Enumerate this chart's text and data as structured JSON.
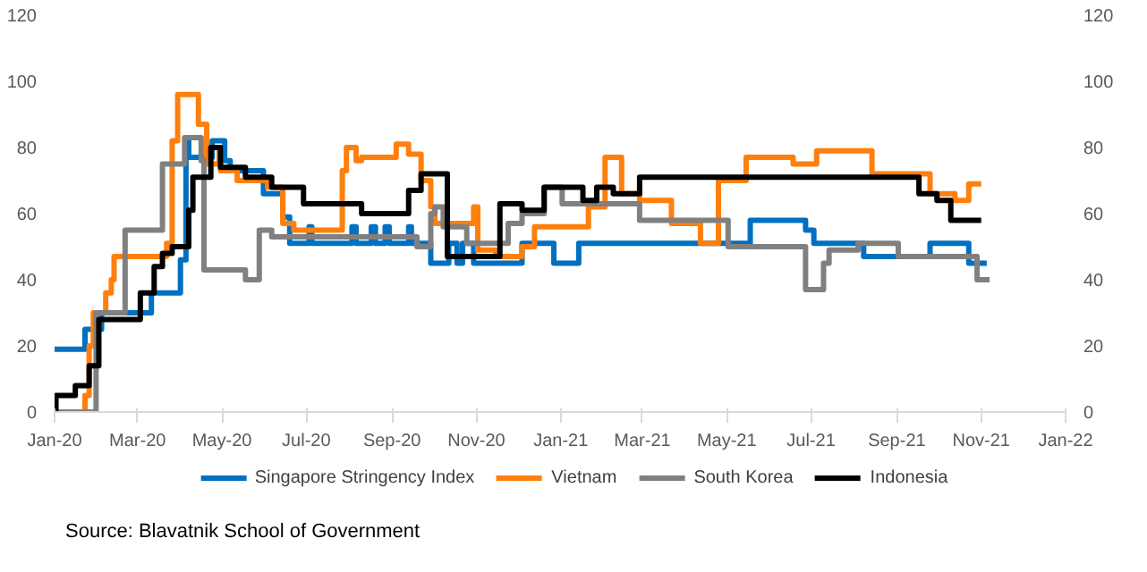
{
  "chart_data": {
    "type": "step",
    "xlim": [
      "2020-01-01",
      "2022-01-01"
    ],
    "xticks": [
      {
        "value": "2020-01-01",
        "label": "Jan-20"
      },
      {
        "value": "2020-03-01",
        "label": "Mar-20"
      },
      {
        "value": "2020-05-01",
        "label": "May-20"
      },
      {
        "value": "2020-07-01",
        "label": "Jul-20"
      },
      {
        "value": "2020-09-01",
        "label": "Sep-20"
      },
      {
        "value": "2020-11-01",
        "label": "Nov-20"
      },
      {
        "value": "2021-01-01",
        "label": "Jan-21"
      },
      {
        "value": "2021-03-01",
        "label": "Mar-21"
      },
      {
        "value": "2021-05-01",
        "label": "May-21"
      },
      {
        "value": "2021-07-01",
        "label": "Jul-21"
      },
      {
        "value": "2021-09-01",
        "label": "Sep-21"
      },
      {
        "value": "2021-11-01",
        "label": "Nov-21"
      },
      {
        "value": "2022-01-01",
        "label": "Jan-22"
      }
    ],
    "ylim": [
      0,
      120
    ],
    "yticks": [
      0,
      20,
      40,
      60,
      80,
      100,
      120
    ],
    "y2lim": [
      0,
      120
    ],
    "y2ticks": [
      0,
      20,
      40,
      60,
      80,
      100,
      120
    ],
    "grid": false,
    "legend": "bottom",
    "marker": "none",
    "line_style": "solid",
    "annotations": [
      "Source:  Blavatnik School of Government"
    ],
    "series": [
      {
        "name": "Singapore Stringency Index",
        "color": "#0070c0",
        "x": [
          "2020-01-01",
          "2020-01-23",
          "2020-02-04",
          "2020-03-11",
          "2020-04-01",
          "2020-04-05",
          "2020-04-07",
          "2020-04-24",
          "2020-05-03",
          "2020-05-07",
          "2020-05-31",
          "2020-06-14",
          "2020-06-19",
          "2020-07-03",
          "2020-07-05",
          "2020-08-03",
          "2020-08-06",
          "2020-08-17",
          "2020-08-20",
          "2020-08-27",
          "2020-08-30",
          "2020-09-13",
          "2020-09-15",
          "2020-09-29",
          "2020-10-12",
          "2020-10-18",
          "2020-10-22",
          "2020-10-30",
          "2020-12-04",
          "2020-12-27",
          "2021-01-14",
          "2021-05-18",
          "2021-06-27",
          "2021-07-03",
          "2021-08-08",
          "2021-09-25",
          "2021-10-23",
          "2021-11-05"
        ],
        "values": [
          19,
          25,
          30,
          36,
          46,
          82,
          77,
          82,
          76,
          73,
          66,
          59,
          51,
          56,
          51,
          56,
          51,
          56,
          51,
          56,
          51,
          56,
          51,
          45,
          51,
          45,
          51,
          45,
          51,
          45,
          51,
          58,
          55,
          51,
          47,
          51,
          45,
          45
        ]
      },
      {
        "name": "Vietnam",
        "color": "#ff7f0e",
        "x": [
          "2020-01-01",
          "2020-01-23",
          "2020-01-26",
          "2020-01-29",
          "2020-02-07",
          "2020-02-11",
          "2020-02-13",
          "2020-03-22",
          "2020-03-26",
          "2020-03-30",
          "2020-04-14",
          "2020-04-20",
          "2020-04-29",
          "2020-04-30",
          "2020-05-12",
          "2020-06-03",
          "2020-06-14",
          "2020-06-22",
          "2020-07-27",
          "2020-07-30",
          "2020-08-06",
          "2020-08-10",
          "2020-09-04",
          "2020-09-13",
          "2020-09-22",
          "2020-09-29",
          "2020-10-02",
          "2020-10-30",
          "2020-11-02",
          "2020-11-15",
          "2020-12-04",
          "2020-12-13",
          "2021-01-21",
          "2021-02-02",
          "2021-02-14",
          "2021-02-27",
          "2021-03-22",
          "2021-04-12",
          "2021-04-25",
          "2021-05-15",
          "2021-06-18",
          "2021-07-05",
          "2021-08-14",
          "2021-09-25",
          "2021-10-13",
          "2021-10-23",
          "2021-11-01"
        ],
        "values": [
          0,
          5,
          20,
          30,
          36,
          40,
          47,
          51,
          82,
          96,
          87,
          75,
          80,
          73,
          70,
          68,
          57,
          55,
          73,
          80,
          76,
          77,
          81,
          78,
          70,
          62,
          57,
          62,
          49,
          47,
          50,
          56,
          62,
          77,
          66,
          64,
          57,
          51,
          70,
          77,
          75,
          79,
          72,
          66,
          64,
          69,
          69
        ]
      },
      {
        "name": "South Korea",
        "color": "#808080",
        "x": [
          "2020-01-01",
          "2020-01-31",
          "2020-02-21",
          "2020-03-19",
          "2020-04-04",
          "2020-04-16",
          "2020-04-18",
          "2020-05-18",
          "2020-05-28",
          "2020-06-06",
          "2020-09-19",
          "2020-09-29",
          "2020-10-02",
          "2020-10-08",
          "2020-10-25",
          "2020-11-24",
          "2020-12-04",
          "2020-12-20",
          "2021-01-02",
          "2021-02-27",
          "2021-05-02",
          "2021-06-27",
          "2021-07-10",
          "2021-07-14",
          "2021-08-04",
          "2021-09-02",
          "2021-10-29",
          "2021-11-07"
        ],
        "values": [
          0,
          30,
          55,
          75,
          83,
          76,
          43,
          40,
          55,
          53,
          50,
          60,
          62,
          56,
          51,
          57,
          60,
          68,
          63,
          58,
          50,
          37,
          45,
          49,
          51,
          47,
          40,
          40
        ]
      },
      {
        "name": "Indonesia",
        "color": "#000000",
        "x": [
          "2020-01-01",
          "2020-01-02",
          "2020-01-16",
          "2020-01-26",
          "2020-02-02",
          "2020-03-03",
          "2020-03-13",
          "2020-03-19",
          "2020-03-26",
          "2020-04-07",
          "2020-04-10",
          "2020-04-23",
          "2020-04-30",
          "2020-05-18",
          "2020-06-06",
          "2020-06-29",
          "2020-08-10",
          "2020-09-13",
          "2020-09-22",
          "2020-10-11",
          "2020-11-18",
          "2020-12-04",
          "2020-12-20",
          "2021-01-17",
          "2021-01-27",
          "2021-02-08",
          "2021-02-27",
          "2021-09-17",
          "2021-09-30",
          "2021-10-10",
          "2021-11-01"
        ],
        "values": [
          0,
          5,
          8,
          14,
          28,
          36,
          44,
          48,
          50,
          61,
          71,
          80,
          74,
          71,
          68,
          63,
          60,
          67,
          72,
          47,
          63,
          61,
          68,
          64,
          68,
          66,
          71,
          66,
          64,
          58,
          58
        ]
      }
    ]
  }
}
